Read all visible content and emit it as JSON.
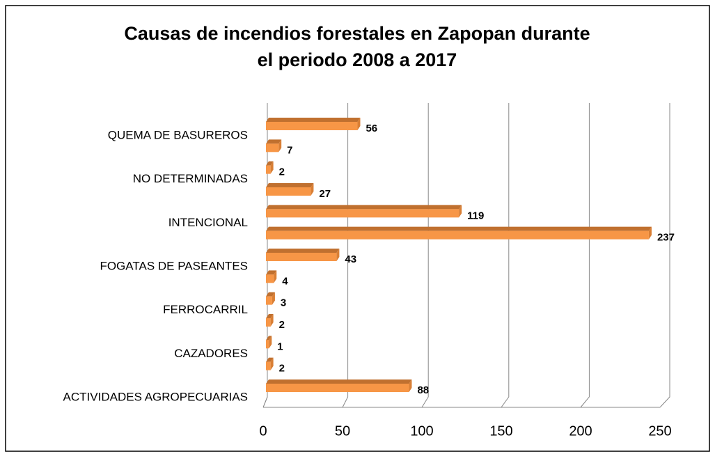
{
  "chart_data": {
    "type": "bar",
    "orientation": "horizontal",
    "three_d": true,
    "title": [
      "Causas de incendios forestales en Zapopan durante",
      "el periodo 2008 a 2017"
    ],
    "categories": [
      "ACTIVIDADES AGROPECUARIAS",
      null,
      "CAZADORES",
      null,
      "FERROCARRIL",
      null,
      "FOGATAS DE PASEANTES",
      null,
      "INTENCIONAL",
      null,
      "NO DETERMINADAS",
      null,
      "QUEMA DE BASUREROS"
    ],
    "values": [
      88,
      2,
      1,
      2,
      3,
      4,
      43,
      237,
      119,
      27,
      2,
      7,
      56
    ],
    "color": "#f79646",
    "xlim": [
      0,
      250
    ],
    "xticks": [
      0,
      50,
      100,
      150,
      200,
      250
    ],
    "grid": true
  }
}
